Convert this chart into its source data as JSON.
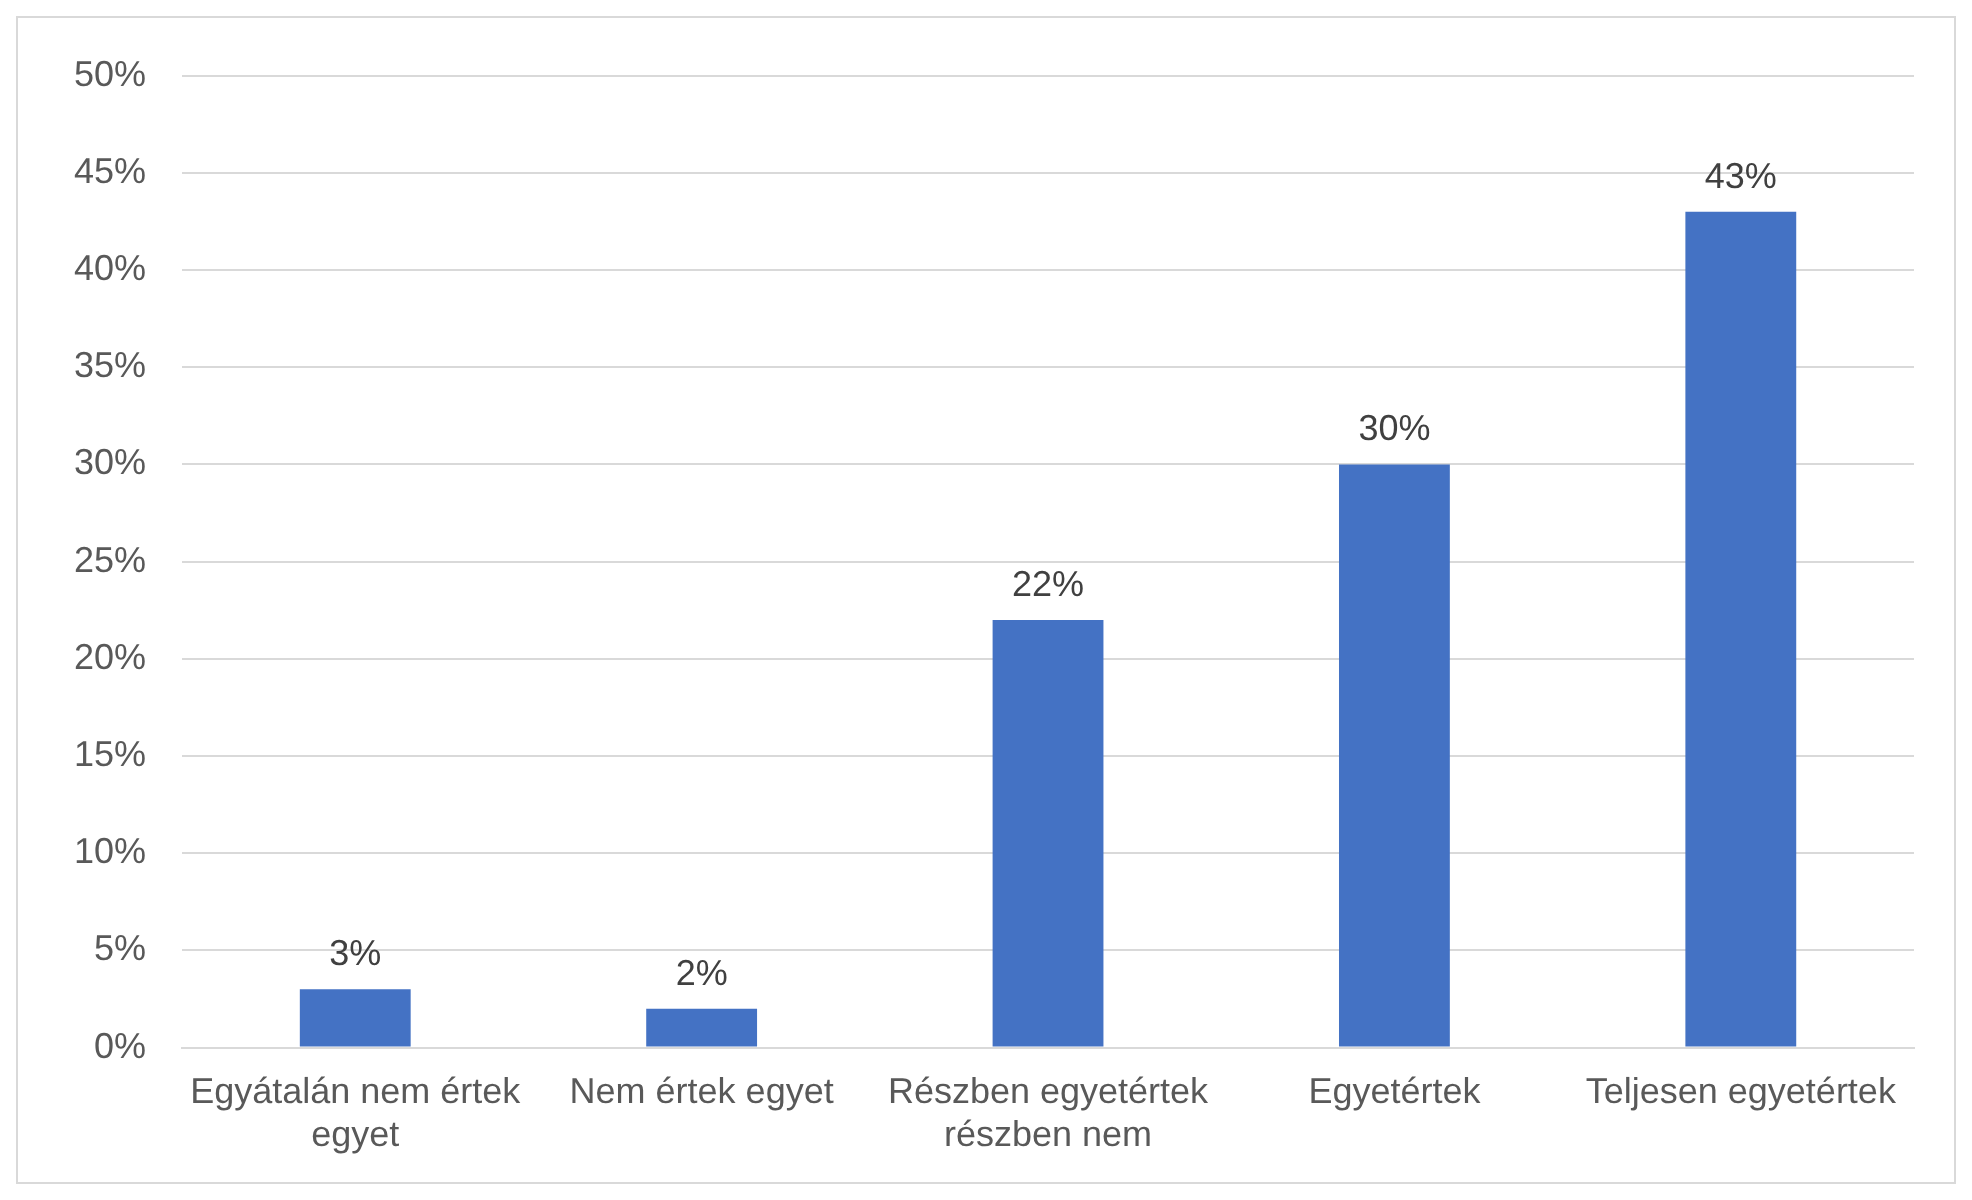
{
  "chart_data": {
    "type": "bar",
    "categories": [
      "Egyátalán nem értek egyet",
      "Nem értek egyet",
      "Részben egyetértek részben nem",
      "Egyetértek",
      "Teljesen egyetértek"
    ],
    "values": [
      3,
      2,
      22,
      30,
      43
    ],
    "value_labels": [
      "3%",
      "2%",
      "22%",
      "30%",
      "43%"
    ],
    "color": "#4472c4",
    "ylim": [
      0,
      50
    ],
    "yticks": [
      {
        "value": 0,
        "label": "0%"
      },
      {
        "value": 5,
        "label": "5%"
      },
      {
        "value": 10,
        "label": "10%"
      },
      {
        "value": 15,
        "label": "15%"
      },
      {
        "value": 20,
        "label": "20%"
      },
      {
        "value": 25,
        "label": "25%"
      },
      {
        "value": 30,
        "label": "30%"
      },
      {
        "value": 35,
        "label": "35%"
      },
      {
        "value": 40,
        "label": "40%"
      },
      {
        "value": 45,
        "label": "45%"
      },
      {
        "value": 50,
        "label": "50%"
      }
    ],
    "grid": "y"
  }
}
